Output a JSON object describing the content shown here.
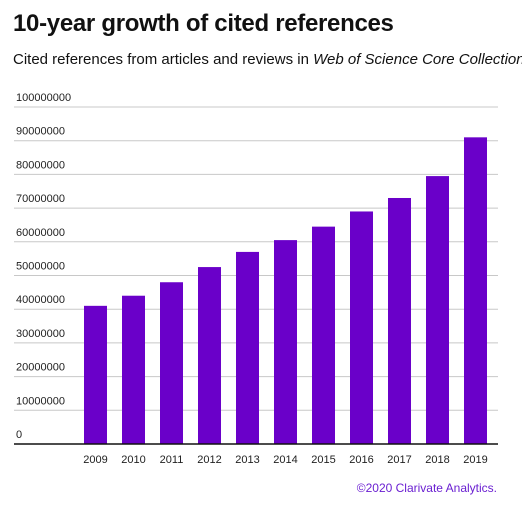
{
  "header": {
    "title": "10-year growth of cited references",
    "subtitle_prefix": "Cited references from articles and reviews in ",
    "subtitle_italic": "Web of Science Core Collection",
    "subtitle_suffix": "."
  },
  "footer": {
    "credit": "©2020 Clarivate Analytics."
  },
  "colors": {
    "bar": "#6a00c9",
    "grid": "#c8c8c8",
    "axis": "#111111",
    "credit": "#6a1fd1"
  },
  "chart_data": {
    "type": "bar",
    "title": "10-year growth of cited references",
    "subtitle": "Cited references from articles and reviews in Web of Science Core Collection.",
    "xlabel": "",
    "ylabel": "",
    "categories": [
      "2009",
      "2010",
      "2011",
      "2012",
      "2013",
      "2014",
      "2015",
      "2016",
      "2017",
      "2018",
      "2019"
    ],
    "values": [
      41000000,
      44000000,
      48000000,
      52500000,
      57000000,
      60500000,
      64500000,
      69000000,
      73000000,
      79500000,
      91000000
    ],
    "ylim": [
      0,
      100000000
    ],
    "yticks": [
      "0",
      "10000000",
      "20000000",
      "30000000",
      "40000000",
      "50000000",
      "60000000",
      "70000000",
      "80000000",
      "90000000",
      "100000000"
    ],
    "grid": true,
    "legend": "none"
  }
}
